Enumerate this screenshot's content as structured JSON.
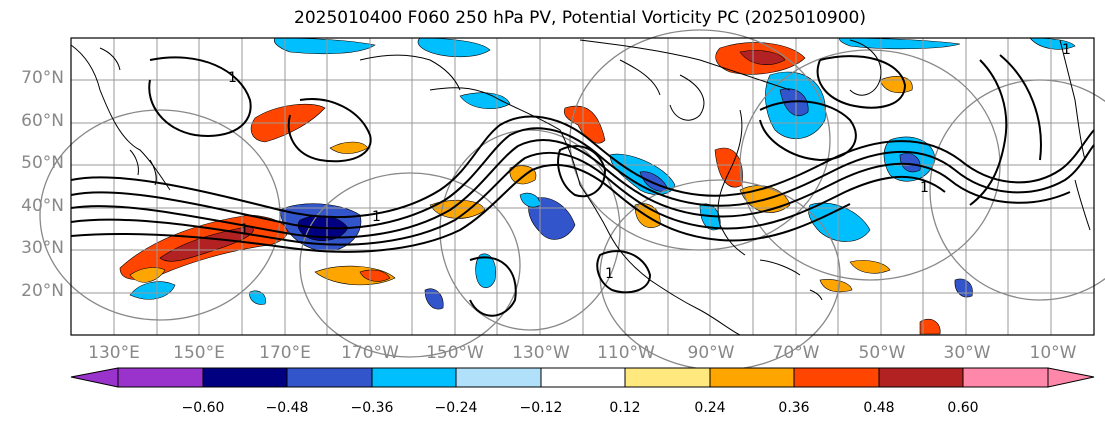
{
  "title": "2025010400 F060 250 hPa PV, Potential Vorticity PC (2025010900)",
  "map": {
    "lat_labels": [
      "70°N",
      "60°N",
      "50°N",
      "40°N",
      "30°N",
      "20°N"
    ],
    "lon_labels": [
      "130°E",
      "150°E",
      "170°E",
      "170°W",
      "150°W",
      "130°W",
      "110°W",
      "90°W",
      "70°W",
      "50°W",
      "30°W",
      "10°W"
    ],
    "contour_labels": [
      "1",
      "1",
      "1",
      "1",
      "1",
      "1"
    ]
  },
  "colorbar": {
    "ticks": [
      "−0.60",
      "−0.48",
      "−0.36",
      "−0.24",
      "−0.12",
      "0.12",
      "0.24",
      "0.36",
      "0.48",
      "0.60"
    ],
    "colors": [
      "#9933cc",
      "#000080",
      "#3355cc",
      "#00bfff",
      "#b0e0fa",
      "#ffffff",
      "#ffe97f",
      "#ffa500",
      "#ff4500",
      "#b22222",
      "#ff88aa"
    ]
  }
}
